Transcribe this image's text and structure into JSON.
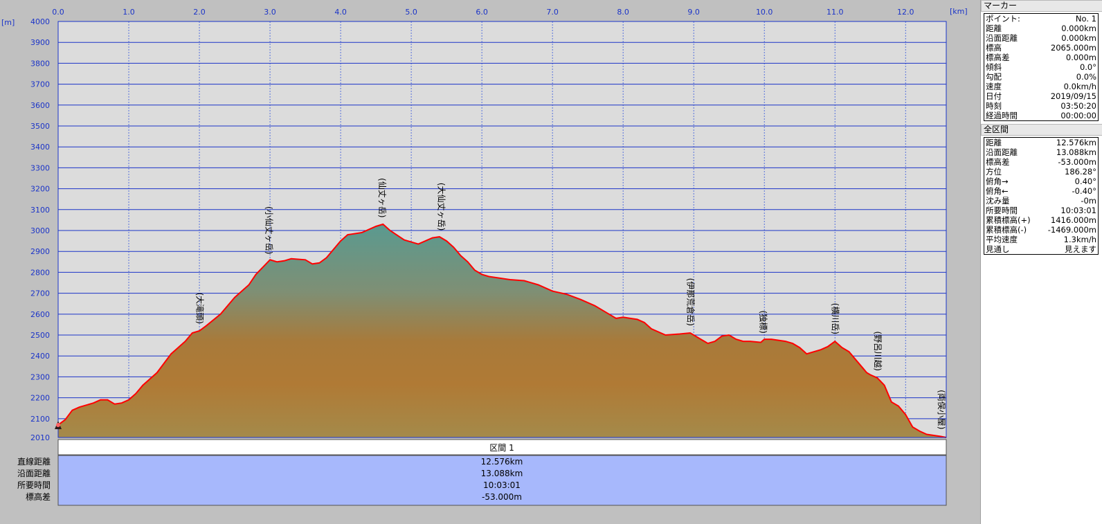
{
  "axes": {
    "x_unit": "[km]",
    "y_unit": "[m]"
  },
  "chart_data": {
    "type": "area",
    "xlabel": "[km]",
    "ylabel": "[m]",
    "xlim": [
      0.0,
      12.576
    ],
    "ylim": [
      2010,
      4000
    ],
    "x_ticks": [
      "0.0",
      "1.0",
      "2.0",
      "3.0",
      "4.0",
      "5.0",
      "6.0",
      "7.0",
      "8.0",
      "9.0",
      "10.0",
      "11.0",
      "12.0"
    ],
    "y_ticks": [
      "4000",
      "3900",
      "3800",
      "3700",
      "3600",
      "3500",
      "3400",
      "3300",
      "3200",
      "3100",
      "3000",
      "2900",
      "2800",
      "2700",
      "2600",
      "2500",
      "2400",
      "2300",
      "2200",
      "2100",
      "2010"
    ],
    "grid": true,
    "series": [
      {
        "x": [
          0.0,
          0.1,
          0.2,
          0.3,
          0.5,
          0.6,
          0.7,
          0.8,
          0.9,
          1.0,
          1.1,
          1.2,
          1.4,
          1.6,
          1.8,
          1.9,
          2.0,
          2.1,
          2.3,
          2.5,
          2.7,
          2.8,
          3.0,
          3.1,
          3.2,
          3.3,
          3.5,
          3.6,
          3.7,
          3.8,
          4.0,
          4.1,
          4.3,
          4.5,
          4.6,
          4.7,
          4.9,
          5.0,
          5.1,
          5.3,
          5.4,
          5.5,
          5.6,
          5.7,
          5.8,
          5.9,
          6.0,
          6.1,
          6.2,
          6.4,
          6.6,
          6.8,
          7.0,
          7.2,
          7.4,
          7.6,
          7.8,
          7.9,
          8.0,
          8.1,
          8.2,
          8.3,
          8.4,
          8.6,
          8.8,
          8.95,
          9.1,
          9.2,
          9.3,
          9.4,
          9.5,
          9.6,
          9.7,
          9.8,
          9.95,
          10.0,
          10.1,
          10.3,
          10.4,
          10.5,
          10.6,
          10.7,
          10.8,
          10.9,
          11.0,
          11.1,
          11.2,
          11.3,
          11.4,
          11.45,
          11.5,
          11.6,
          11.7,
          11.75,
          11.8,
          11.9,
          12.0,
          12.1,
          12.2,
          12.3,
          12.4,
          12.5,
          12.576
        ],
        "y": [
          2070,
          2095,
          2140,
          2155,
          2175,
          2190,
          2190,
          2170,
          2175,
          2190,
          2220,
          2260,
          2320,
          2410,
          2470,
          2510,
          2520,
          2545,
          2600,
          2680,
          2740,
          2790,
          2860,
          2850,
          2855,
          2865,
          2860,
          2840,
          2845,
          2870,
          2950,
          2980,
          2990,
          3020,
          3030,
          3000,
          2955,
          2945,
          2935,
          2965,
          2970,
          2950,
          2920,
          2880,
          2850,
          2810,
          2790,
          2780,
          2775,
          2765,
          2760,
          2740,
          2710,
          2695,
          2670,
          2640,
          2600,
          2580,
          2585,
          2580,
          2575,
          2560,
          2530,
          2500,
          2505,
          2510,
          2480,
          2460,
          2470,
          2495,
          2500,
          2480,
          2470,
          2470,
          2465,
          2480,
          2480,
          2470,
          2460,
          2440,
          2410,
          2420,
          2430,
          2445,
          2470,
          2440,
          2420,
          2380,
          2340,
          2320,
          2310,
          2295,
          2260,
          2220,
          2180,
          2160,
          2120,
          2060,
          2040,
          2025,
          2020,
          2015,
          2010
        ],
        "color": "#ff0000"
      }
    ],
    "annotations": [
      "(大滝頭)",
      "(小仙丈ヶ岳)",
      "(仙丈ヶ岳)",
      "(大仙丈ヶ岳)",
      "(伊那荒倉岳)",
      "(独標)",
      "(横川岳)",
      "(野呂川越)",
      "(両俣小屋)"
    ],
    "annotation_x": [
      2.0,
      2.98,
      4.58,
      5.42,
      8.95,
      9.98,
      11.0,
      11.6,
      12.5
    ]
  },
  "section": {
    "title": "区間 1",
    "labels": [
      "直線距離",
      "沿面距離",
      "所要時間",
      "標高差"
    ],
    "values": [
      "12.576km",
      "13.088km",
      "10:03:01",
      "-53.000m"
    ]
  },
  "marker": {
    "header": "マーカー",
    "rows": [
      {
        "k": "ポイント:",
        "v": "No. 1"
      },
      {
        "k": "距離",
        "v": "0.000km"
      },
      {
        "k": "沿面距離",
        "v": "0.000km"
      },
      {
        "k": "標高",
        "v": "2065.000m"
      },
      {
        "k": "標高差",
        "v": "0.000m"
      },
      {
        "k": "傾斜",
        "v": "0.0°"
      },
      {
        "k": "勾配",
        "v": "0.0%"
      },
      {
        "k": "速度",
        "v": "0.0km/h"
      },
      {
        "k": "日付",
        "v": "2019/09/15"
      },
      {
        "k": "時刻",
        "v": "03:50:20"
      },
      {
        "k": "経過時間",
        "v": "00:00:00"
      }
    ]
  },
  "total": {
    "header": "全区間",
    "rows": [
      {
        "k": "距離",
        "v": "12.576km"
      },
      {
        "k": "沿面距離",
        "v": "13.088km"
      },
      {
        "k": "標高差",
        "v": "-53.000m"
      },
      {
        "k": "方位",
        "v": "186.28°"
      },
      {
        "k": "俯角→",
        "v": "0.40°"
      },
      {
        "k": "俯角←",
        "v": "-0.40°"
      },
      {
        "k": "沈み量",
        "v": "-0m"
      },
      {
        "k": "所要時間",
        "v": "10:03:01"
      },
      {
        "k": "累積標高(+)",
        "v": "1416.000m"
      },
      {
        "k": "累積標高(-)",
        "v": "-1469.000m"
      },
      {
        "k": "平均速度",
        "v": "1.3km/h"
      },
      {
        "k": "見通し",
        "v": "見えます"
      }
    ]
  }
}
